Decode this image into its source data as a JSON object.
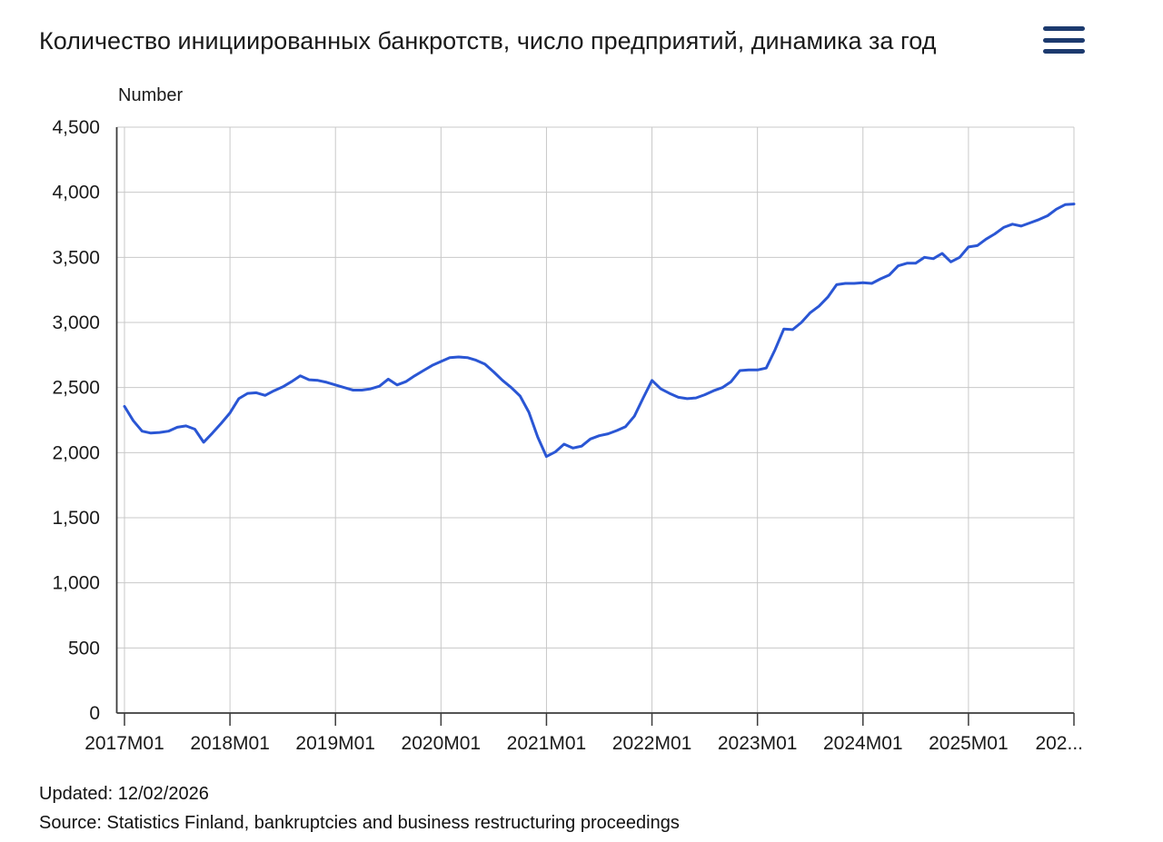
{
  "header": {
    "title": "Количество инициированных банкротств, число предприятий, динамика за год",
    "menu_icon": "hamburger"
  },
  "theme": {
    "line_color": "#2a56d4",
    "grid_color": "#c8c8c8",
    "axis_color": "#3c3c3c",
    "text_color": "#1a1a1a",
    "menu_icon_color": "#1c3a6e"
  },
  "chart_data": {
    "type": "line",
    "y_axis_title": "Number",
    "ylim": [
      0,
      4500
    ],
    "grid": true,
    "legend": "none",
    "x_frequency": "monthly",
    "x_start": "2017M01",
    "x_end": "2026M01",
    "y_tick_labels": [
      "0",
      "500",
      "1,000",
      "1,500",
      "2,000",
      "2,500",
      "3,000",
      "3,500",
      "4,000",
      "4,500"
    ],
    "x_tick_labels": [
      "2017M01",
      "2018M01",
      "2019M01",
      "2020M01",
      "2021M01",
      "2022M01",
      "2023M01",
      "2024M01",
      "2025M01",
      "202..."
    ],
    "values": [
      2355,
      2245,
      2165,
      2150,
      2155,
      2165,
      2195,
      2205,
      2180,
      2080,
      2150,
      2225,
      2305,
      2415,
      2455,
      2460,
      2440,
      2475,
      2505,
      2545,
      2590,
      2560,
      2555,
      2540,
      2520,
      2500,
      2480,
      2480,
      2490,
      2510,
      2565,
      2520,
      2545,
      2590,
      2630,
      2670,
      2700,
      2730,
      2735,
      2730,
      2710,
      2680,
      2620,
      2555,
      2500,
      2435,
      2310,
      2120,
      1970,
      2005,
      2065,
      2035,
      2050,
      2105,
      2130,
      2145,
      2170,
      2200,
      2280,
      2420,
      2555,
      2490,
      2455,
      2425,
      2415,
      2420,
      2445,
      2475,
      2500,
      2545,
      2630,
      2635,
      2635,
      2650,
      2790,
      2950,
      2945,
      3000,
      3075,
      3125,
      3195,
      3290,
      3300,
      3300,
      3305,
      3300,
      3335,
      3365,
      3435,
      3455,
      3455,
      3500,
      3490,
      3530,
      3465,
      3500,
      3580,
      3590,
      3640,
      3680,
      3730,
      3755,
      3740,
      3765,
      3790,
      3820,
      3870,
      3905,
      3910
    ]
  },
  "footer": {
    "updated": "Updated: 12/02/2026",
    "source": "Source: Statistics Finland, bankruptcies and business restructuring proceedings"
  }
}
